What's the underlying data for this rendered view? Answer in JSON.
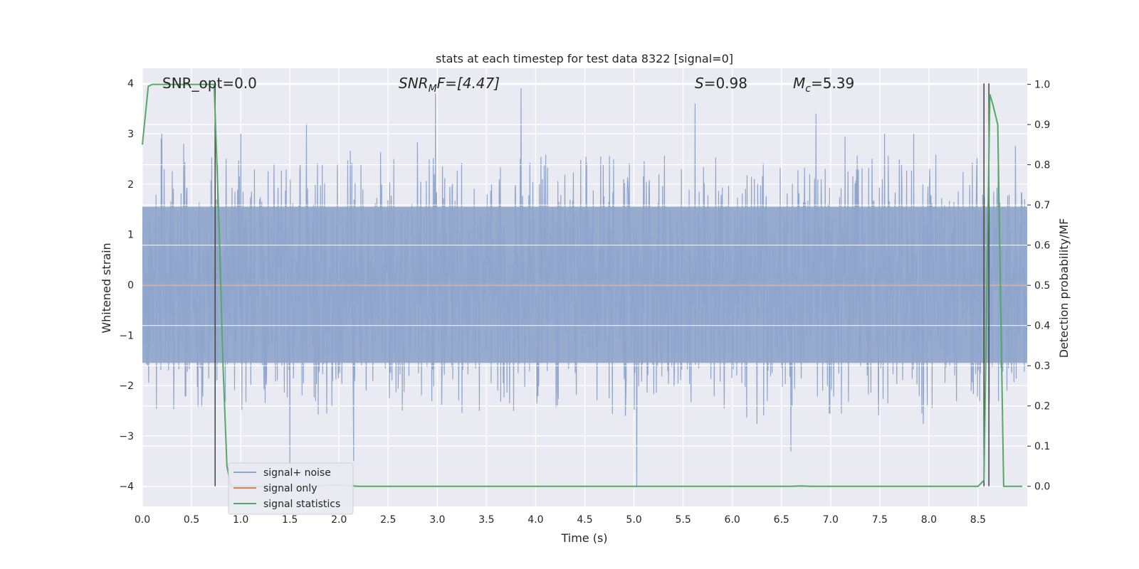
{
  "chart_data": {
    "type": "line",
    "title": "stats at each timestep for test data 8322 [signal=0]",
    "xlabel": "Time (s)",
    "ylabel_left": "Whitened strain",
    "ylabel_right": "Detection probability/MF",
    "xlim": [
      0,
      9.0
    ],
    "ylim_left": [
      -4.4,
      4.3
    ],
    "ylim_right": [
      -0.05,
      1.04
    ],
    "x_ticks": [
      0.0,
      0.5,
      1.0,
      1.5,
      2.0,
      2.5,
      3.0,
      3.5,
      4.0,
      4.5,
      5.0,
      5.5,
      6.0,
      6.5,
      7.0,
      7.5,
      8.0,
      8.5
    ],
    "x_tick_labels": [
      "0.0",
      "0.5",
      "1.0",
      "1.5",
      "2.0",
      "2.5",
      "3.0",
      "3.5",
      "4.0",
      "4.5",
      "5.0",
      "5.5",
      "6.0",
      "6.5",
      "7.0",
      "7.5",
      "8.0",
      "8.5"
    ],
    "y_left_ticks": [
      4,
      3,
      2,
      1,
      0,
      -1,
      -2,
      -3,
      -4
    ],
    "y_left_tick_labels": [
      "4",
      "3",
      "2",
      "1",
      "0",
      "−1",
      "−2",
      "−3",
      "−4"
    ],
    "y_right_ticks": [
      1.0,
      0.9,
      0.8,
      0.7,
      0.6,
      0.5,
      0.4,
      0.3,
      0.2,
      0.1,
      0.0
    ],
    "y_right_tick_labels": [
      "1.0",
      "0.9",
      "0.8",
      "0.7",
      "0.6",
      "0.5",
      "0.4",
      "0.3",
      "0.2",
      "0.1",
      "0.0"
    ],
    "grid": true,
    "legend_position": "lower-left",
    "annotations": {
      "snr_opt": "SNR_opt=0.0",
      "snr_mf_main": "SNR",
      "snr_mf_sub": "M",
      "snr_mf_rest": "F=[4.47]",
      "s_main": "S",
      "s_rest": "=0.98",
      "mc_main": "M",
      "mc_sub": "c",
      "mc_rest": "=5.39"
    },
    "series": [
      {
        "name": "signal+ noise",
        "axis": "left",
        "color": "#8fa5cc",
        "envelope_typical": 1.6,
        "peaks": [
          {
            "x": 0.2,
            "y": 3.0
          },
          {
            "x": 0.42,
            "y": 2.8
          },
          {
            "x": 1.0,
            "y": 3.0
          },
          {
            "x": 1.5,
            "y": -3.7
          },
          {
            "x": 1.67,
            "y": 3.2
          },
          {
            "x": 2.15,
            "y": -3.5
          },
          {
            "x": 2.98,
            "y": 3.8
          },
          {
            "x": 3.85,
            "y": 3.9
          },
          {
            "x": 5.03,
            "y": -4.0
          },
          {
            "x": 5.62,
            "y": 3.6
          },
          {
            "x": 6.85,
            "y": 3.4
          },
          {
            "x": 7.55,
            "y": 3.0
          }
        ]
      },
      {
        "name": "signal only",
        "axis": "left",
        "color": "#dd8452",
        "x": [
          0.0,
          9.0
        ],
        "y": [
          0.0,
          0.0
        ]
      },
      {
        "name": "signal statistics",
        "axis": "right",
        "color": "#55a868",
        "x": [
          0.0,
          0.06,
          0.1,
          0.2,
          0.6,
          0.73,
          0.78,
          0.82,
          0.86,
          0.9,
          1.5,
          2.0,
          2.2,
          6.6,
          6.7,
          6.8,
          8.5,
          8.56,
          8.59,
          8.62,
          8.65,
          8.7,
          8.74,
          8.76,
          8.8,
          8.95
        ],
        "y": [
          0.85,
          0.995,
          1.0,
          1.0,
          1.0,
          1.0,
          0.65,
          0.3,
          0.05,
          0.0,
          0.0,
          0.003,
          0.0,
          0.0,
          0.001,
          0.0,
          0.0,
          0.015,
          0.5,
          0.975,
          0.95,
          0.9,
          0.3,
          0.0,
          0.0,
          0.0
        ]
      }
    ],
    "vertical_lines": [
      {
        "x": 0.74,
        "y_left": [
          -4.0,
          4.0
        ],
        "color": "#444444"
      },
      {
        "x": 8.56,
        "y_left": [
          -4.0,
          4.0
        ],
        "color": "#444444"
      },
      {
        "x": 8.61,
        "y_left": [
          -4.0,
          4.0
        ],
        "color": "#444444"
      }
    ]
  }
}
